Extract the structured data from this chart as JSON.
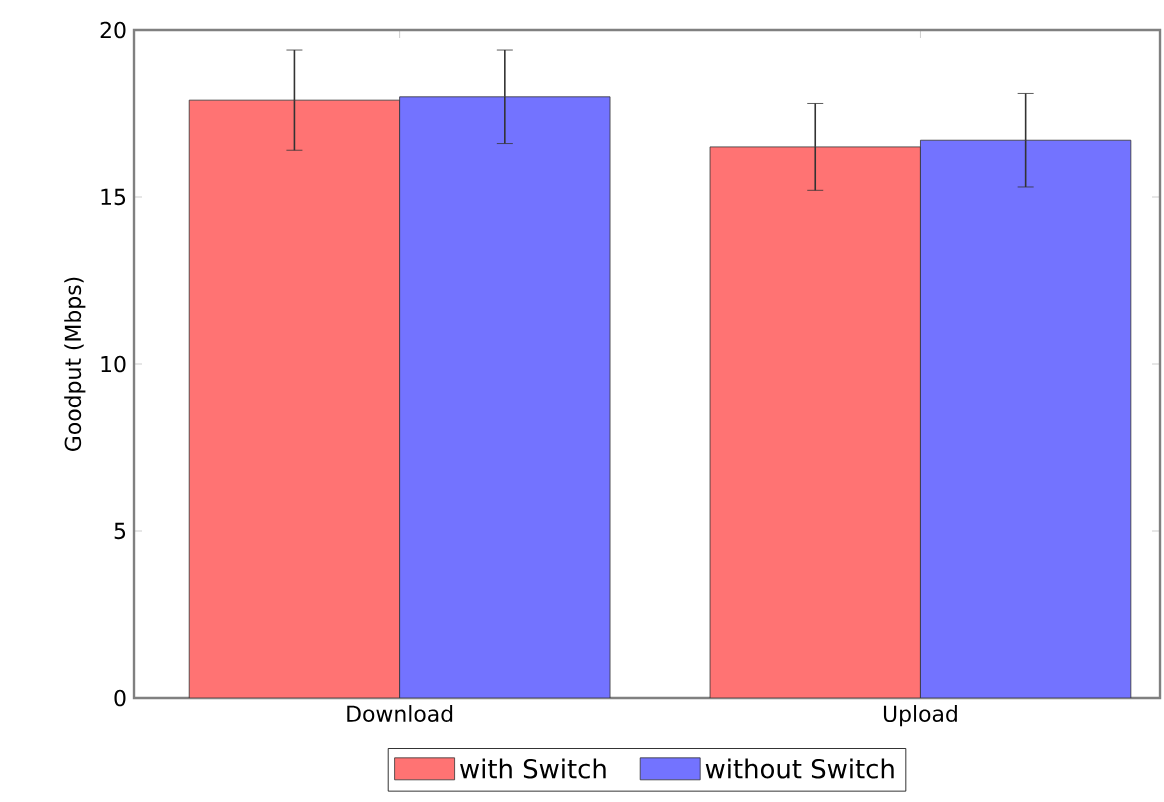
{
  "chart_data": {
    "type": "bar",
    "ylabel": "Goodput (Mbps)",
    "categories": [
      "Download",
      "Upload"
    ],
    "series": [
      {
        "name": "with Switch",
        "color": "#ff7373",
        "values": [
          17.9,
          16.5
        ],
        "errors": [
          1.5,
          1.3
        ]
      },
      {
        "name": "without Switch",
        "color": "#7373ff",
        "values": [
          18.0,
          16.7
        ],
        "errors": [
          1.4,
          1.4
        ]
      }
    ],
    "ylim": [
      0,
      20
    ],
    "yticks": [
      0,
      5,
      10,
      15,
      20
    ],
    "legend": "bottom",
    "grid": false
  }
}
